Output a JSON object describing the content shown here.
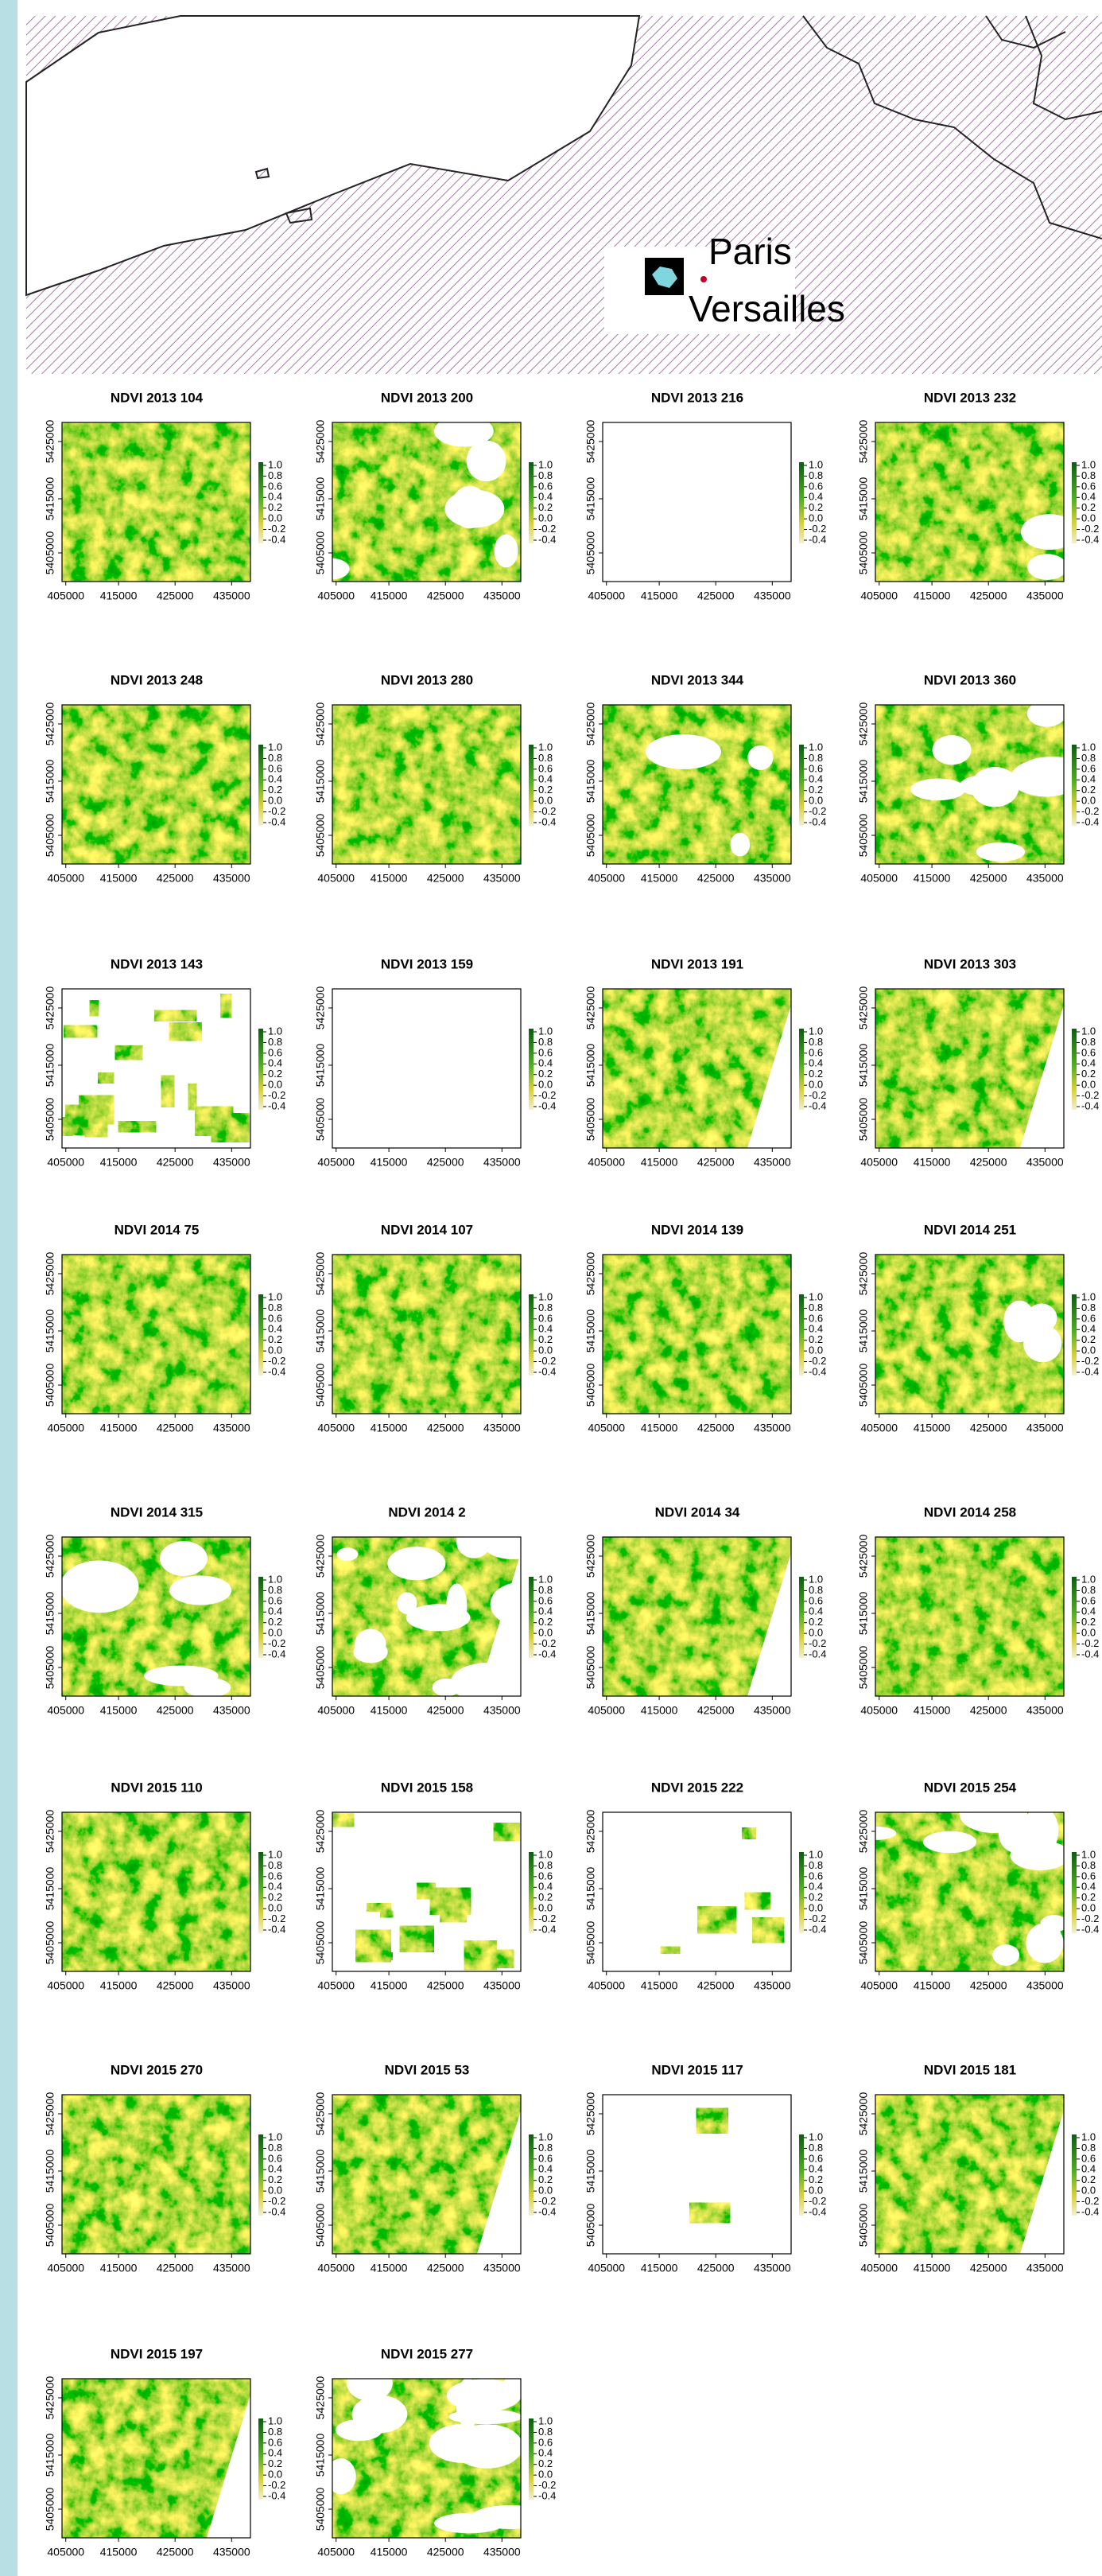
{
  "map": {
    "labels": {
      "paris": "Paris",
      "versailles": "Versailles"
    }
  },
  "axes": {
    "xticks": [
      "405000",
      "415000",
      "425000",
      "435000"
    ],
    "yticks": [
      "5405000",
      "5415000",
      "5425000"
    ],
    "legend_ticks": [
      "1.0",
      "0.8",
      "0.6",
      "0.4",
      "0.2",
      "0.0",
      "-0.2",
      "-0.4"
    ]
  },
  "panels": [
    "NDVI 2013 104",
    "NDVI 2013 200",
    "NDVI 2013 216",
    "NDVI 2013 232",
    "NDVI 2013 248",
    "NDVI 2013 280",
    "NDVI 2013 344",
    "NDVI 2013 360",
    "NDVI 2013 143",
    "NDVI 2013 159",
    "NDVI 2013 191",
    "NDVI 2013 303",
    "NDVI 2014 75",
    "NDVI 2014 107",
    "NDVI 2014 139",
    "NDVI 2014 251",
    "NDVI 2014 315",
    "NDVI 2014 2",
    "NDVI 2014 34",
    "NDVI 2014 258",
    "NDVI 2015 110",
    "NDVI 2015 158",
    "NDVI 2015 222",
    "NDVI 2015 254",
    "NDVI 2015 270",
    "NDVI 2015 53",
    "NDVI 2015 117",
    "NDVI 2015 181",
    "NDVI 2015 197",
    "NDVI 2015 277"
  ]
}
